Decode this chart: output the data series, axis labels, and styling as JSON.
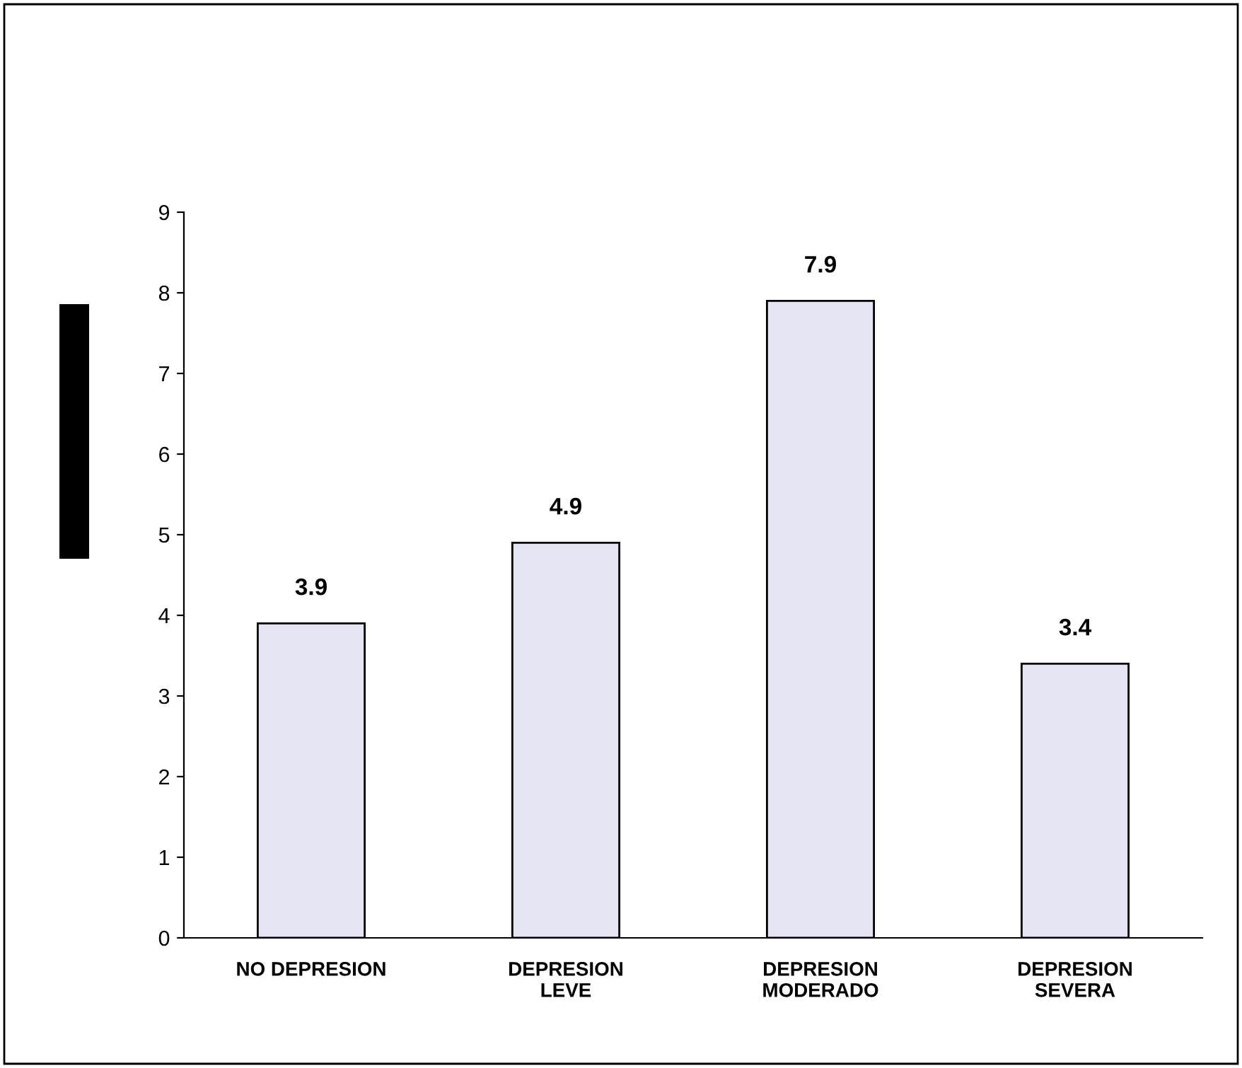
{
  "chart_data": {
    "type": "bar",
    "categories": [
      "NO DEPRESION",
      "DEPRESION\nLEVE",
      "DEPRESION\nMODERADO",
      "DEPRESION\nSEVERA"
    ],
    "values": [
      3.9,
      4.9,
      7.9,
      3.4
    ],
    "color": "#e4e4f2",
    "ylim": [
      0,
      9
    ],
    "yticks": [
      0,
      1,
      2,
      3,
      4,
      5,
      6,
      7,
      8,
      9
    ],
    "grid": false,
    "legend": false,
    "data_labels": true
  }
}
